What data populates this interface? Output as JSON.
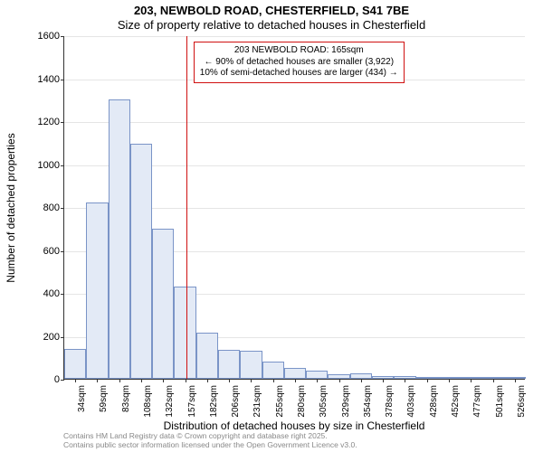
{
  "title_line1": "203, NEWBOLD ROAD, CHESTERFIELD, S41 7BE",
  "title_line2": "Size of property relative to detached houses in Chesterfield",
  "xlabel": "Distribution of detached houses by size in Chesterfield",
  "ylabel": "Number of detached properties",
  "chart": {
    "type": "histogram",
    "bar_fill": "#e3eaf6",
    "bar_border": "#7a94c7",
    "grid_color": "#e5e5e5",
    "axis_color": "#333333",
    "background": "#ffffff",
    "y": {
      "min": 0,
      "max": 1600,
      "step": 200
    },
    "x_ticks": [
      "34sqm",
      "59sqm",
      "83sqm",
      "108sqm",
      "132sqm",
      "157sqm",
      "182sqm",
      "206sqm",
      "231sqm",
      "255sqm",
      "280sqm",
      "305sqm",
      "329sqm",
      "354sqm",
      "378sqm",
      "403sqm",
      "428sqm",
      "452sqm",
      "477sqm",
      "501sqm",
      "526sqm"
    ],
    "values": [
      140,
      820,
      1300,
      1095,
      700,
      430,
      215,
      135,
      130,
      80,
      50,
      38,
      20,
      25,
      12,
      12,
      6,
      8,
      5,
      3,
      3
    ],
    "reference": {
      "color": "#d01010",
      "bin_index_after": 5,
      "callout": {
        "lines": [
          "203 NEWBOLD ROAD: 165sqm",
          "← 90% of detached houses are smaller (3,922)",
          "10% of semi-detached houses are larger (434) →"
        ]
      }
    }
  },
  "footer": {
    "line1": "Contains HM Land Registry data © Crown copyright and database right 2025.",
    "line2": "Contains public sector information licensed under the Open Government Licence v3.0."
  }
}
